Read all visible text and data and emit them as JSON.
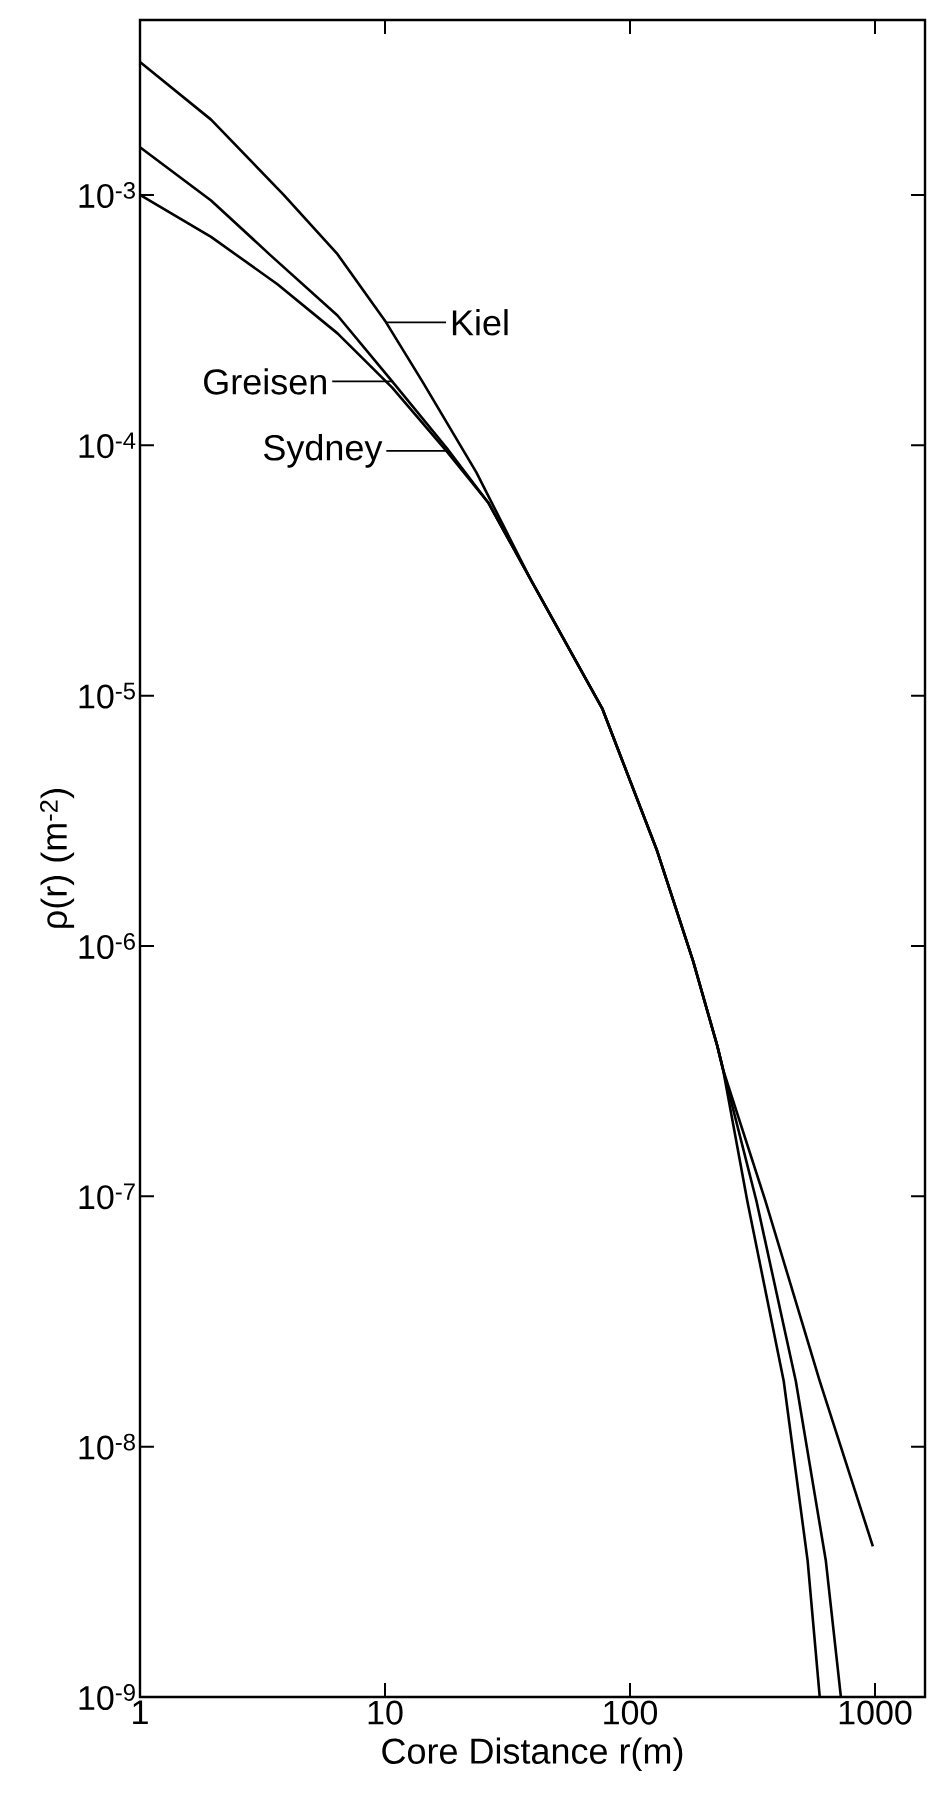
{
  "chart_data": {
    "type": "line",
    "xlabel": "Core Distance  r(m)",
    "ylabel": "ρ(r)  (m$^{-2}$)",
    "log": "xy",
    "legend": "top left",
    "xlim": [
      1,
      1600
    ],
    "ylim": [
      1e-09,
      0.005
    ],
    "xticks": [
      1,
      10,
      100,
      1000
    ],
    "yticks": [
      {
        "value": 1e-09,
        "label": "10$^{-9}$"
      },
      {
        "value": 1e-08,
        "label": "10$^{-8}$"
      },
      {
        "value": 1e-07,
        "label": "10$^{-7}$"
      },
      {
        "value": 1e-06,
        "label": "10$^{-6}$"
      },
      {
        "value": 1e-05,
        "label": "10$^{-5}$"
      },
      {
        "value": 0.0001,
        "label": "10$^{-4}$"
      },
      {
        "value": 0.001,
        "label": "10$^{-3}$"
      }
    ],
    "series": [
      {
        "name": "Kiel",
        "color": "#000000",
        "x": [
          1,
          1.95,
          3.86,
          6.4,
          10.1,
          14.2,
          23.6,
          39.4,
          77,
          129,
          181,
          227,
          240,
          301,
          424,
          531,
          595
        ],
        "values": [
          0.0034,
          0.002,
          0.001,
          0.00058,
          0.00031,
          0.00018,
          7.8e-05,
          2.9e-05,
          8.9e-06,
          2.4e-06,
          8.7e-07,
          4e-07,
          3.2e-07,
          9.6e-08,
          1.83e-08,
          3.5e-09,
          1e-09
        ]
      },
      {
        "name": "Greisen",
        "color": "#000000",
        "x": [
          1,
          1.95,
          3.44,
          6.4,
          10.7,
          17.8,
          26.4,
          39.4,
          77,
          129,
          181,
          227,
          240,
          328,
          475,
          630,
          726
        ],
        "values": [
          0.00155,
          0.00095,
          0.00057,
          0.00033,
          0.00018,
          9.8e-05,
          5.9e-05,
          2.9e-05,
          8.9e-06,
          2.4e-06,
          8.7e-07,
          4e-07,
          3.2e-07,
          9.6e-08,
          1.83e-08,
          3.5e-09,
          1e-09
        ]
      },
      {
        "name": "Sydney",
        "color": "#000000",
        "x": [
          1,
          1.95,
          3.64,
          6.4,
          10.7,
          17.8,
          26.4,
          39.4,
          77,
          129,
          181,
          227,
          240,
          357,
          595,
          980
        ],
        "values": [
          0.001,
          0.00068,
          0.00044,
          0.00028,
          0.00017,
          9.5e-05,
          5.9e-05,
          2.9e-05,
          8.9e-06,
          2.4e-06,
          8.7e-07,
          4e-07,
          3.2e-07,
          9.6e-08,
          1.83e-08,
          4e-09
        ]
      }
    ]
  }
}
